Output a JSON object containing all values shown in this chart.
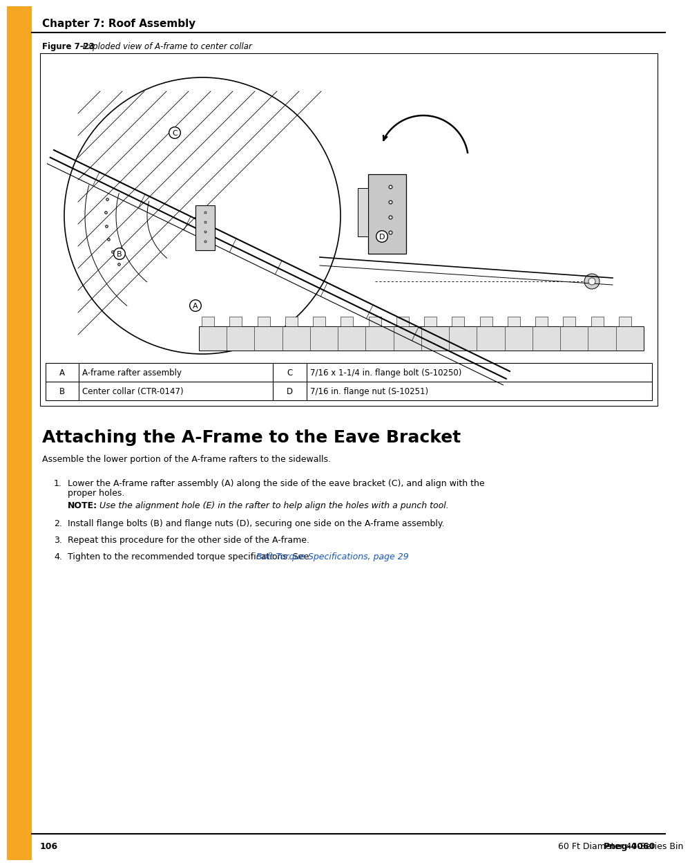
{
  "page_bg": "#ffffff",
  "sidebar_color": "#F5A623",
  "chapter_title": "Chapter 7: Roof Assembly",
  "chapter_fontsize": 11,
  "figure_label_bold": "Figure 7-23",
  "figure_label_italic": " Exploded view of A-frame to center collar",
  "figure_label_fontsize": 8.5,
  "section_title": "Attaching the A-Frame to the Eave Bracket",
  "section_title_fontsize": 18,
  "intro_text": "Assemble the lower portion of the A-frame rafters to the sidewalls.",
  "body_fontsize": 9,
  "note_label": "NOTE:",
  "note_text": " Use the alignment hole (E) in the rafter to help align the holes with a punch tool.",
  "list_items": [
    "Lower the A-frame rafter assembly (A) along the side of the eave bracket (C), and align with the\nproper holes.",
    "Install flange bolts (B) and flange nuts (D), securing one side on the A-frame assembly.",
    "Repeat this procedure for the other side of the A-frame.",
    "Tighten to the recommended torque specifications. See "
  ],
  "link_text": "Bolt Torque Specifications, page 29",
  "link_color": "#1155CC",
  "table_rows": [
    [
      "A",
      "A-frame rafter assembly",
      "C",
      "7/16 x 1-1/4 in. flange bolt (S-10250)"
    ],
    [
      "B",
      "Center collar (CTR-0147)",
      "D",
      "7/16 in. flange nut (S-10251)"
    ]
  ],
  "footer_page": "106",
  "footer_right_bold": "Pneg-4060",
  "footer_right_normal": " 60 Ft Diameter 40-Series Bin",
  "footer_fontsize": 9
}
